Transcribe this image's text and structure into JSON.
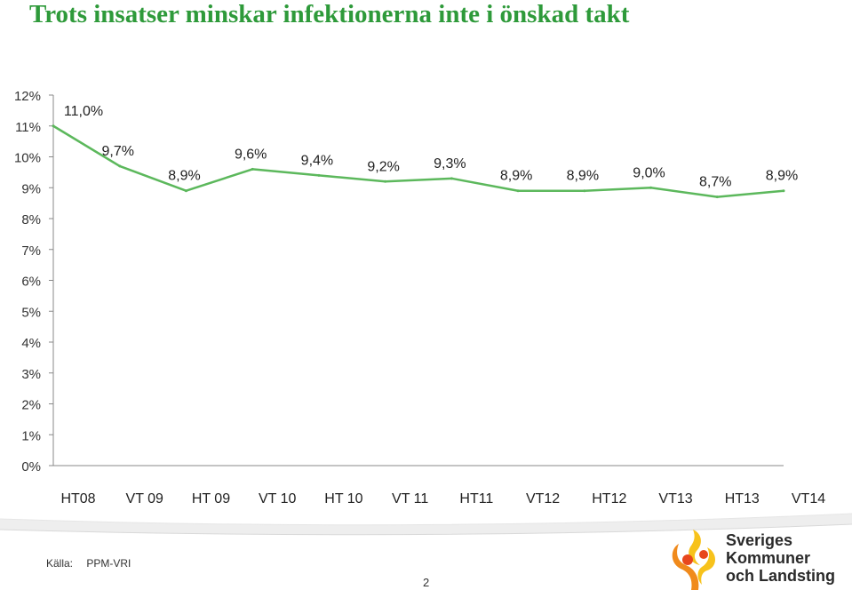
{
  "title": "Trots insatser minskar infektionerna inte i önskad takt",
  "chart_data": {
    "type": "line",
    "categories": [
      "HT08",
      "VT 09",
      "HT 09",
      "VT 10",
      "HT 10",
      "VT 11",
      "HT11",
      "VT12",
      "HT12",
      "VT13",
      "HT13",
      "VT14"
    ],
    "values": [
      11.0,
      9.7,
      8.9,
      9.6,
      9.4,
      9.2,
      9.3,
      8.9,
      8.9,
      9.0,
      8.7,
      8.9
    ],
    "data_labels": [
      "11,0%",
      "9,7%",
      "8,9%",
      "9,6%",
      "9,4%",
      "9,2%",
      "9,3%",
      "8,9%",
      "8,9%",
      "9,0%",
      "8,7%",
      "8,9%"
    ],
    "y_ticks": [
      "0%",
      "1%",
      "2%",
      "3%",
      "4%",
      "5%",
      "6%",
      "7%",
      "8%",
      "9%",
      "10%",
      "11%",
      "12%"
    ],
    "ylim": [
      0,
      12
    ],
    "line_color": "#5cb85c",
    "grid": false,
    "legend": "none"
  },
  "footer": {
    "source_label": "Källa:",
    "source_value": "PPM-VRI",
    "page_number": "2"
  },
  "logo": {
    "line1": "Sveriges",
    "line2": "Kommuner",
    "line3": "och Landsting",
    "colors": [
      "#f08a1c",
      "#f7c21b",
      "#e8471c"
    ]
  }
}
